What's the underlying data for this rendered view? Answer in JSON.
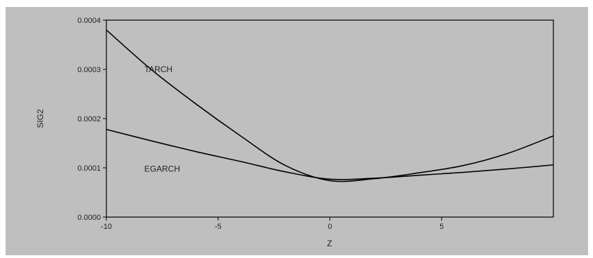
{
  "chart_data": {
    "type": "line",
    "title": "",
    "xlabel": "Z",
    "ylabel": "SIG2",
    "xlim": [
      -10,
      10
    ],
    "ylim": [
      0,
      0.0004
    ],
    "x_ticks": [
      -10,
      -5,
      0,
      5
    ],
    "x_tick_labels": [
      "-10",
      "-5",
      "0",
      "5"
    ],
    "y_ticks": [
      0,
      0.0001,
      0.0002,
      0.0003,
      0.0004
    ],
    "y_tick_labels": [
      "0.0000",
      "0.0001",
      "0.0002",
      "0.0003",
      "0.0004"
    ],
    "grid": false,
    "legend": "none",
    "series": [
      {
        "name": "TARCH",
        "color": "#000000",
        "x": [
          -10,
          -8,
          -6,
          -4,
          -2,
          0,
          2,
          4,
          6,
          8,
          10
        ],
        "y": [
          0.00038,
          0.0003,
          0.00023,
          0.000165,
          0.000105,
          7.4e-05,
          7.8e-05,
          9e-05,
          0.000105,
          0.00013,
          0.000165
        ]
      },
      {
        "name": "EGARCH",
        "color": "#000000",
        "x": [
          -10,
          -8,
          -6,
          -4,
          -2,
          0,
          2,
          4,
          6,
          8,
          10
        ],
        "y": [
          0.000178,
          0.000155,
          0.000133,
          0.000113,
          9.2e-05,
          7.7e-05,
          7.9e-05,
          8.5e-05,
          9.1e-05,
          9.8e-05,
          0.000106
        ]
      }
    ],
    "annotations": [
      {
        "text": "TARCH",
        "x": -8.3,
        "y": 0.0003
      },
      {
        "text": "EGARCH",
        "x": -8.3,
        "y": 9.8e-05
      }
    ]
  }
}
